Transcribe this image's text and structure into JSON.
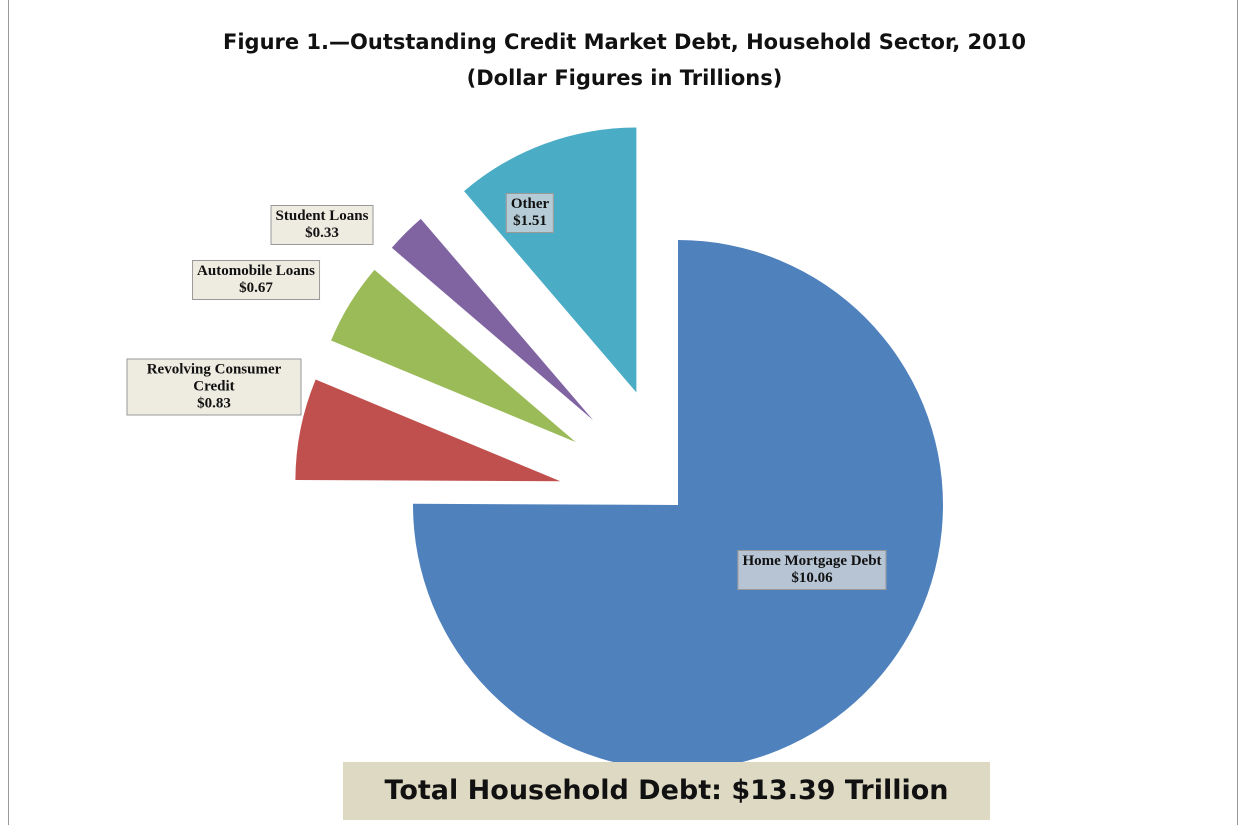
{
  "chart_data": {
    "type": "pie",
    "title": "Figure 1.—Outstanding Credit Market Debt, Household Sector, 2010",
    "subtitle": "(Dollar Figures in Trillions)",
    "categories": [
      "Home Mortgage Debt",
      "Revolving Consumer Credit",
      "Automobile Loans",
      "Student Loans",
      "Other"
    ],
    "values": [
      10.06,
      0.83,
      0.67,
      0.33,
      1.51
    ],
    "value_labels": [
      "$10.06",
      "$0.83",
      "$0.67",
      "$0.33",
      "$1.51"
    ],
    "colors": [
      "#4f81bd",
      "#c0504d",
      "#9bbb59",
      "#8064a2",
      "#4bacc6"
    ],
    "annotation": "Total Household Debt: $13.39 Trillion"
  }
}
